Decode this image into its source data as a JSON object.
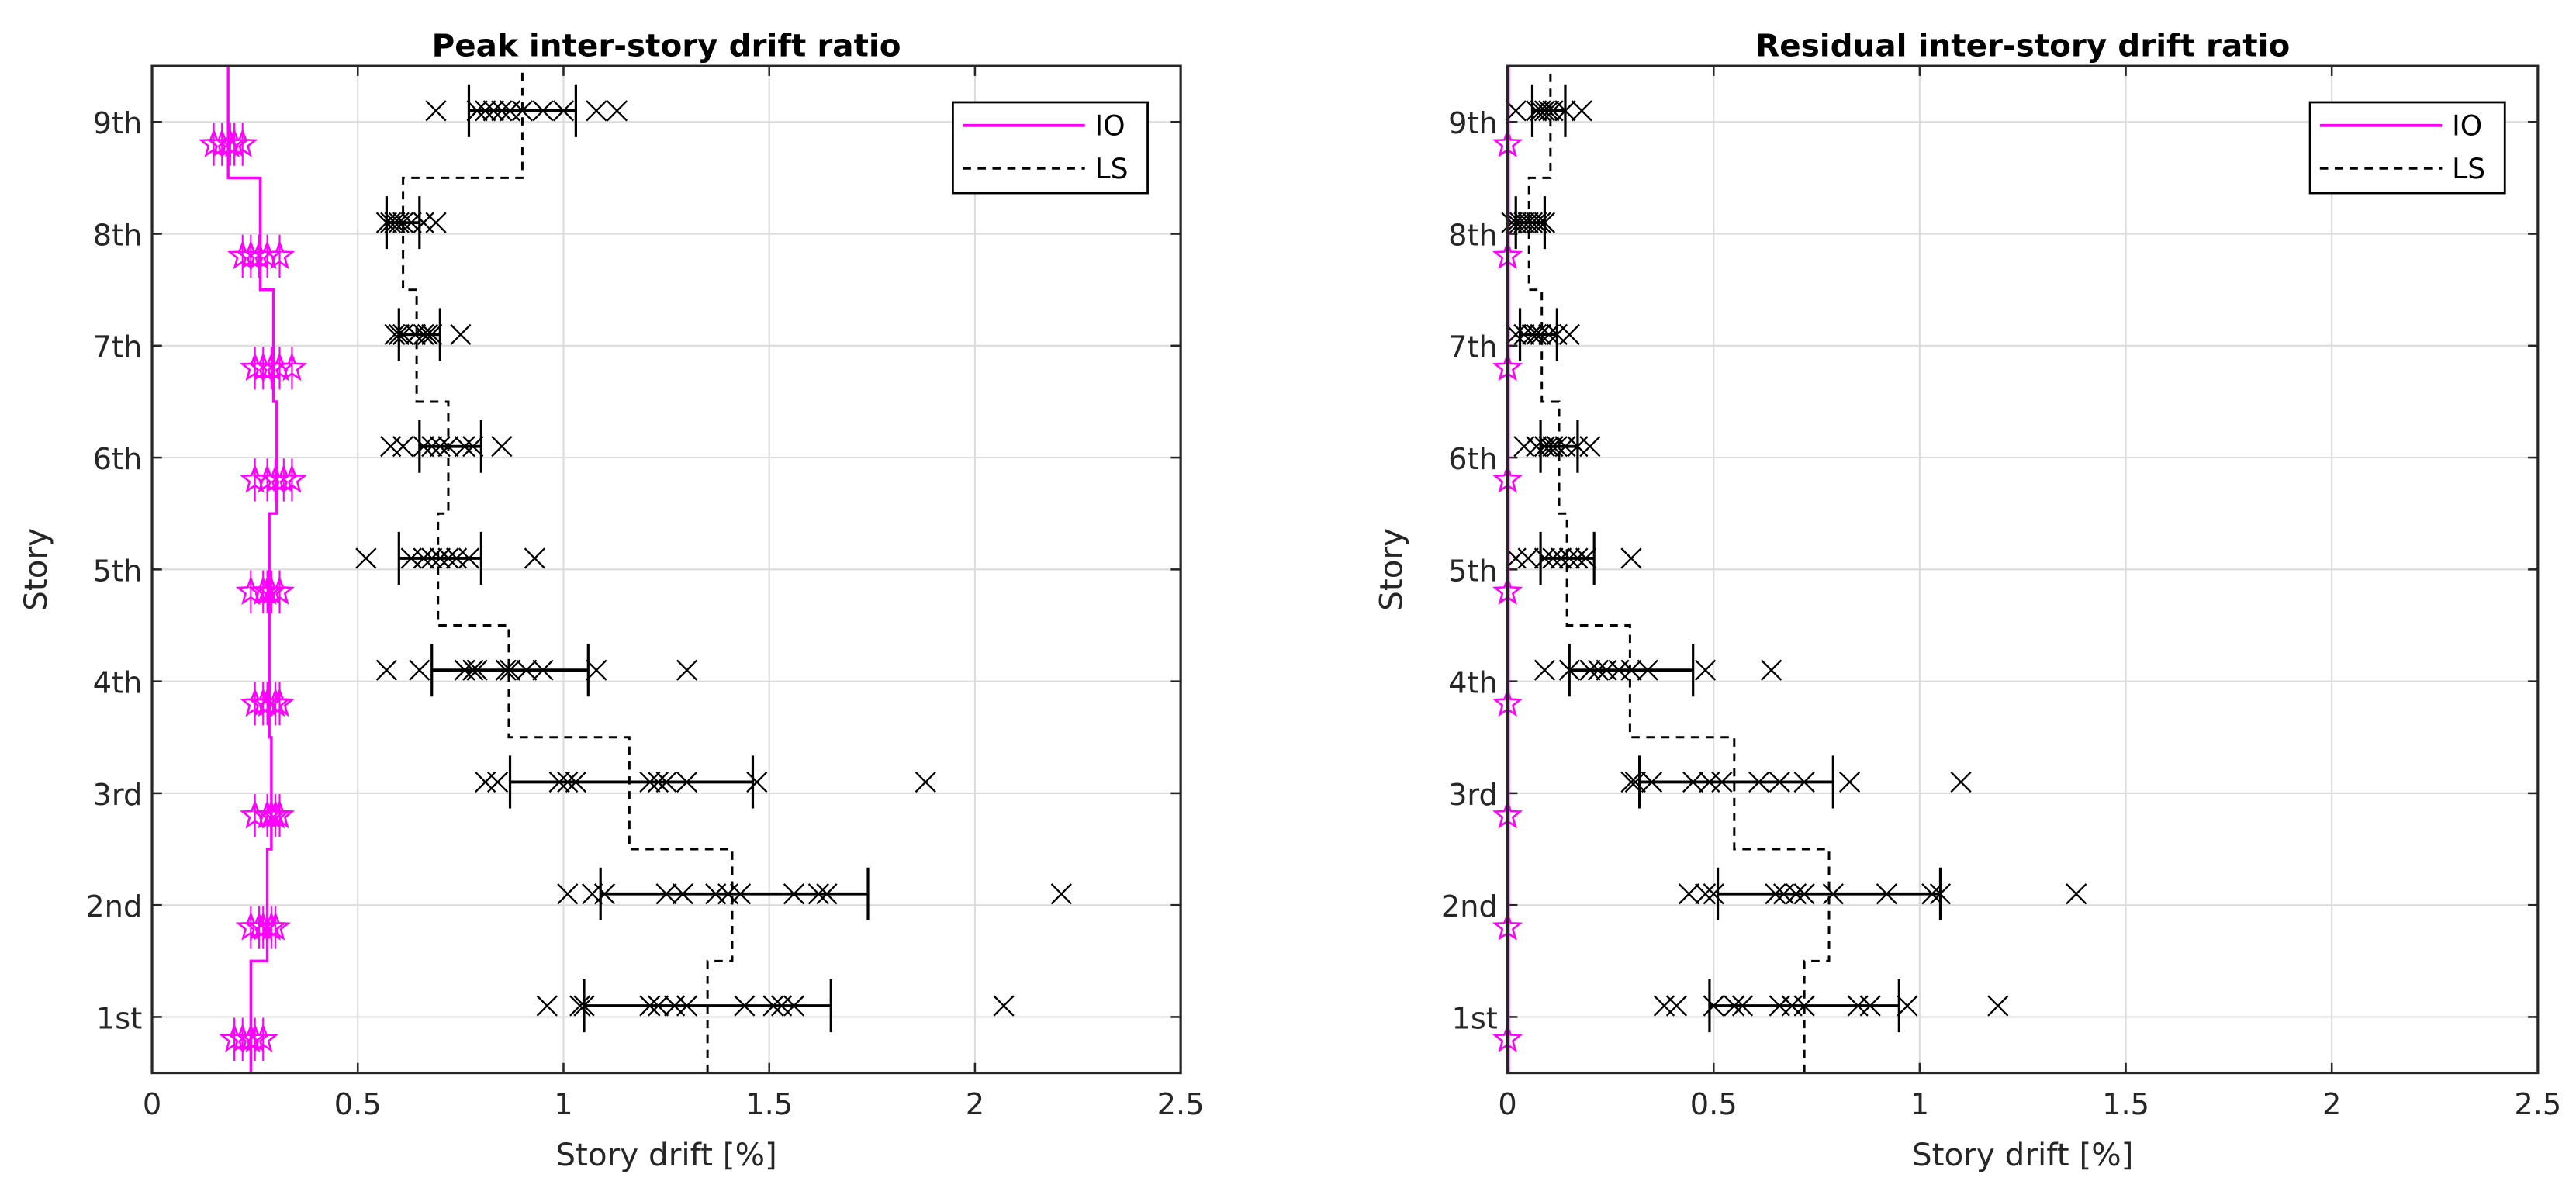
{
  "chart_data": [
    {
      "type": "scatter",
      "title": "Peak inter-story drift ratio",
      "xlabel": "Story drift [%]",
      "ylabel": "Story",
      "xlim": [
        0,
        2.5
      ],
      "xticks": [
        "0",
        "0.5",
        "1",
        "1.5",
        "2",
        "2.5"
      ],
      "yticks": [
        "1st",
        "2nd",
        "3rd",
        "4th",
        "5th",
        "6th",
        "7th",
        "8th",
        "9th"
      ],
      "grid": true,
      "legend": {
        "position": "top-right",
        "entries": [
          "IO",
          "LS"
        ]
      },
      "colors": {
        "IO": "#ff00ff",
        "LS": "#000000",
        "records": "#000000"
      },
      "IO_limit": [
        0.24,
        0.28,
        0.29,
        0.285,
        0.285,
        0.303,
        0.295,
        0.263,
        0.185
      ],
      "LS_limit": [
        1.35,
        1.41,
        1.16,
        0.867,
        0.695,
        0.72,
        0.643,
        0.61,
        0.9
      ],
      "IO_points": [
        [
          0.2,
          0.22,
          0.24,
          0.25,
          0.27
        ],
        [
          0.24,
          0.26,
          0.27,
          0.29,
          0.3
        ],
        [
          0.25,
          0.28,
          0.29,
          0.3,
          0.31
        ],
        [
          0.25,
          0.27,
          0.28,
          0.3,
          0.31
        ],
        [
          0.24,
          0.27,
          0.28,
          0.29,
          0.31
        ],
        [
          0.25,
          0.28,
          0.3,
          0.32,
          0.34
        ],
        [
          0.25,
          0.27,
          0.29,
          0.31,
          0.34
        ],
        [
          0.22,
          0.24,
          0.26,
          0.28,
          0.31
        ],
        [
          0.15,
          0.17,
          0.19,
          0.2,
          0.22
        ]
      ],
      "records": [
        [
          0.96,
          1.04,
          1.05,
          1.21,
          1.23,
          1.27,
          1.3,
          1.44,
          1.51,
          1.53,
          1.56,
          2.07
        ],
        [
          1.01,
          1.07,
          1.1,
          1.25,
          1.29,
          1.37,
          1.4,
          1.43,
          1.56,
          1.62,
          1.64,
          2.21
        ],
        [
          0.81,
          0.84,
          0.99,
          1.01,
          1.03,
          1.21,
          1.23,
          1.25,
          1.3,
          1.47,
          1.88
        ],
        [
          0.57,
          0.65,
          0.76,
          0.78,
          0.79,
          0.86,
          0.87,
          0.91,
          0.95,
          1.08,
          1.3
        ],
        [
          0.52,
          0.63,
          0.66,
          0.68,
          0.7,
          0.72,
          0.74,
          0.77,
          0.93
        ],
        [
          0.58,
          0.61,
          0.66,
          0.68,
          0.7,
          0.72,
          0.76,
          0.78,
          0.85
        ],
        [
          0.59,
          0.6,
          0.61,
          0.64,
          0.66,
          0.67,
          0.68,
          0.75
        ],
        [
          0.57,
          0.58,
          0.59,
          0.6,
          0.61,
          0.63,
          0.66,
          0.69
        ],
        [
          0.69,
          0.79,
          0.81,
          0.83,
          0.85,
          0.87,
          0.9,
          0.95,
          1.0,
          1.08,
          1.13
        ]
      ],
      "error_bars": [
        [
          1.05,
          1.65
        ],
        [
          1.09,
          1.74
        ],
        [
          0.87,
          1.46
        ],
        [
          0.68,
          1.06
        ],
        [
          0.6,
          0.8
        ],
        [
          0.65,
          0.8
        ],
        [
          0.6,
          0.7
        ],
        [
          0.57,
          0.65
        ],
        [
          0.77,
          1.03
        ]
      ]
    },
    {
      "type": "scatter",
      "title": "Residual inter-story drift ratio",
      "xlabel": "Story drift [%]",
      "ylabel": "Story",
      "xlim": [
        0,
        2.5
      ],
      "xticks": [
        "0",
        "0.5",
        "1",
        "1.5",
        "2",
        "2.5"
      ],
      "yticks": [
        "1st",
        "2nd",
        "3rd",
        "4th",
        "5th",
        "6th",
        "7th",
        "8th",
        "9th"
      ],
      "grid": true,
      "legend": {
        "position": "top-right",
        "entries": [
          "IO",
          "LS"
        ]
      },
      "colors": {
        "IO": "#ff00ff",
        "LS": "#000000",
        "records": "#000000"
      },
      "IO_limit": [
        0.002,
        0.002,
        0.002,
        0.002,
        0.002,
        0.002,
        0.002,
        0.002,
        0.002
      ],
      "LS_limit": [
        0.72,
        0.78,
        0.55,
        0.297,
        0.144,
        0.125,
        0.083,
        0.052,
        0.104
      ],
      "IO_points": [
        [
          0.0
        ],
        [
          0.0
        ],
        [
          0.0
        ],
        [
          0.0
        ],
        [
          0.0
        ],
        [
          0.0
        ],
        [
          0.0
        ],
        [
          0.0
        ],
        [
          0.0
        ]
      ],
      "records": [
        [
          0.38,
          0.41,
          0.5,
          0.55,
          0.57,
          0.66,
          0.69,
          0.72,
          0.85,
          0.88,
          0.97,
          1.19
        ],
        [
          0.44,
          0.48,
          0.5,
          0.65,
          0.67,
          0.7,
          0.72,
          0.79,
          0.92,
          1.03,
          1.05,
          1.38
        ],
        [
          0.3,
          0.31,
          0.35,
          0.45,
          0.49,
          0.52,
          0.61,
          0.66,
          0.72,
          0.83,
          1.1
        ],
        [
          0.09,
          0.15,
          0.2,
          0.22,
          0.24,
          0.27,
          0.3,
          0.34,
          0.48,
          0.64
        ],
        [
          0.02,
          0.05,
          0.09,
          0.11,
          0.13,
          0.15,
          0.17,
          0.19,
          0.3
        ],
        [
          0.04,
          0.07,
          0.09,
          0.1,
          0.11,
          0.12,
          0.14,
          0.17,
          0.2
        ],
        [
          0.02,
          0.04,
          0.06,
          0.07,
          0.08,
          0.1,
          0.12,
          0.15
        ],
        [
          0.01,
          0.02,
          0.03,
          0.04,
          0.05,
          0.06,
          0.07,
          0.08,
          0.09
        ],
        [
          0.02,
          0.07,
          0.08,
          0.09,
          0.1,
          0.11,
          0.14,
          0.18
        ]
      ],
      "error_bars": [
        [
          0.49,
          0.95
        ],
        [
          0.51,
          1.05
        ],
        [
          0.32,
          0.79
        ],
        [
          0.15,
          0.45
        ],
        [
          0.08,
          0.21
        ],
        [
          0.08,
          0.17
        ],
        [
          0.03,
          0.12
        ],
        [
          0.02,
          0.09
        ],
        [
          0.06,
          0.14
        ]
      ]
    }
  ]
}
